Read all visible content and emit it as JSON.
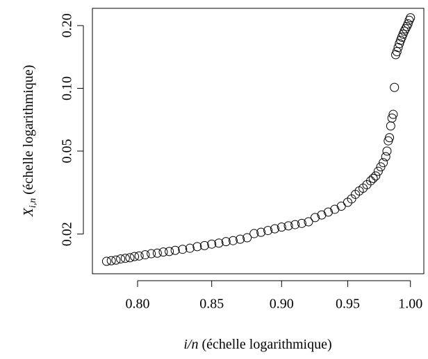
{
  "chart_data": {
    "type": "scatter",
    "xlabel": {
      "var": "i/n",
      "text": "(échelle logarithmique)"
    },
    "ylabel": {
      "var": "X",
      "sub": "i,n",
      "text": "(échelle logarithmique)"
    },
    "xlog": true,
    "ylog": true,
    "color": "#000000",
    "xlim": [
      0.771,
      1.011
    ],
    "ylim": [
      0.0129,
      0.242
    ],
    "xticks": [
      {
        "value": 0.8,
        "label": "0.80"
      },
      {
        "value": 0.85,
        "label": "0.85"
      },
      {
        "value": 0.9,
        "label": "0.90"
      },
      {
        "value": 0.95,
        "label": "0.95"
      },
      {
        "value": 1.0,
        "label": "1.00"
      }
    ],
    "yticks": [
      {
        "value": 0.02,
        "label": "0.02"
      },
      {
        "value": 0.05,
        "label": "0.05"
      },
      {
        "value": 0.1,
        "label": "0.10"
      },
      {
        "value": 0.2,
        "label": "0.20"
      }
    ],
    "x": [
      0.78,
      0.783,
      0.786,
      0.789,
      0.792,
      0.795,
      0.798,
      0.801,
      0.805,
      0.809,
      0.813,
      0.817,
      0.821,
      0.825,
      0.83,
      0.835,
      0.84,
      0.845,
      0.85,
      0.855,
      0.86,
      0.865,
      0.87,
      0.875,
      0.88,
      0.885,
      0.89,
      0.895,
      0.9,
      0.905,
      0.91,
      0.915,
      0.92,
      0.925,
      0.93,
      0.935,
      0.94,
      0.945,
      0.95,
      0.953,
      0.956,
      0.959,
      0.962,
      0.965,
      0.968,
      0.97,
      0.972,
      0.974,
      0.976,
      0.978,
      0.98,
      0.981,
      0.982,
      0.983,
      0.984,
      0.985,
      0.986,
      0.987,
      0.988,
      0.989,
      0.99,
      0.991,
      0.992,
      0.993,
      0.994,
      0.995,
      0.996,
      0.997,
      0.998,
      0.999,
      1.0
    ],
    "values": [
      0.0148,
      0.0149,
      0.015,
      0.0152,
      0.0153,
      0.0154,
      0.0156,
      0.0157,
      0.0159,
      0.0161,
      0.0162,
      0.0164,
      0.0165,
      0.0167,
      0.0169,
      0.0171,
      0.0174,
      0.0176,
      0.0179,
      0.0181,
      0.0184,
      0.0186,
      0.0189,
      0.0192,
      0.0201,
      0.0204,
      0.0208,
      0.0212,
      0.0216,
      0.0219,
      0.0222,
      0.0225,
      0.0229,
      0.024,
      0.0247,
      0.0255,
      0.0263,
      0.0272,
      0.0284,
      0.0295,
      0.031,
      0.0322,
      0.0332,
      0.0345,
      0.036,
      0.037,
      0.038,
      0.04,
      0.042,
      0.044,
      0.047,
      0.05,
      0.056,
      0.058,
      0.066,
      0.072,
      0.075,
      0.101,
      0.145,
      0.15,
      0.157,
      0.164,
      0.17,
      0.176,
      0.182,
      0.188,
      0.193,
      0.198,
      0.204,
      0.212,
      0.218
    ]
  }
}
